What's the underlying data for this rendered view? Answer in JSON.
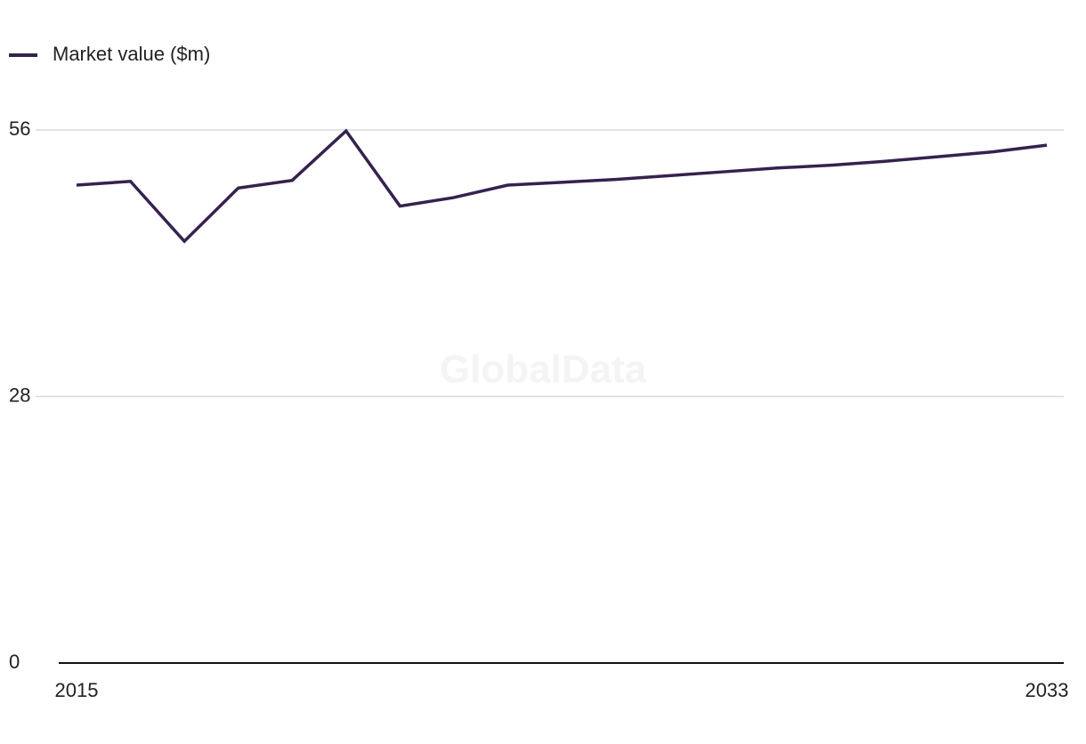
{
  "chart_data": {
    "type": "line",
    "watermark": "GlobalData",
    "x": [
      2015,
      2016,
      2017,
      2018,
      2019,
      2020,
      2021,
      2022,
      2023,
      2024,
      2025,
      2026,
      2027,
      2028,
      2029,
      2030,
      2031,
      2032,
      2033
    ],
    "xlim": [
      2015,
      2033
    ],
    "xticks": [
      2015,
      2033
    ],
    "ylim": [
      0,
      56
    ],
    "yticks": [
      0,
      28,
      56
    ],
    "grid": true,
    "legend": "top-left",
    "series": [
      {
        "name": "Market value ($m)",
        "color": "#35224f",
        "values": [
          50.2,
          50.6,
          44.3,
          49.9,
          50.7,
          55.9,
          48.0,
          48.9,
          50.2,
          50.5,
          50.8,
          51.2,
          51.6,
          52.0,
          52.3,
          52.7,
          53.2,
          53.7,
          54.4
        ]
      }
    ]
  }
}
